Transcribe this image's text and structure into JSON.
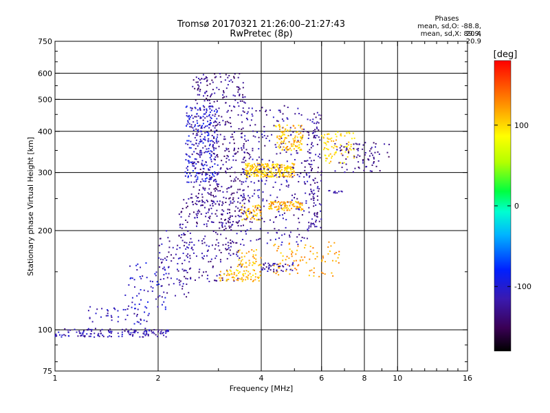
{
  "header": {
    "title_line1": "Tromsø 20170321 21:26:00–21:27:43",
    "title_line2": "RwPretec (8p)"
  },
  "stats": {
    "heading": "Phases",
    "line_o": "mean, sd,O: -88.8, 20.4",
    "line_x": "mean, sd,X:  89.9, 20.9"
  },
  "colorbar": {
    "unit_label": "[deg]",
    "ticks": [
      {
        "value": 100,
        "label": "100"
      },
      {
        "value": 0,
        "label": "0"
      },
      {
        "value": -100,
        "label": "-100"
      }
    ],
    "range": [
      -180,
      180
    ],
    "colormap": "rainbow (black-purple-blue-cyan-green-yellow-orange-red)"
  },
  "chart_data": {
    "type": "scatter",
    "title": "Tromsø 20170321 21:26:00–21:27:43",
    "subtitle": "RwPretec (8p)",
    "xlabel": "Frequency [MHz]",
    "ylabel": "Stationary phase Virtual Height [km]",
    "xscale": "log",
    "yscale": "log",
    "xlim": [
      1,
      16
    ],
    "ylim": [
      75,
      750
    ],
    "xticks": [
      1,
      2,
      4,
      6,
      8,
      10,
      16
    ],
    "xtick_labels": [
      "1",
      "2",
      "4",
      "6",
      "8",
      "10",
      "16"
    ],
    "xgrid": [
      2,
      4,
      6,
      8,
      10
    ],
    "yticks": [
      75,
      100,
      200,
      300,
      400,
      500,
      600,
      750
    ],
    "ytick_labels": [
      "75",
      "100",
      "200",
      "300",
      "400",
      "500",
      "600",
      "750"
    ],
    "ygrid": [
      100,
      200,
      300,
      400,
      500,
      600
    ],
    "grid": true,
    "color_value": "phase [deg]",
    "clusters": [
      {
        "x": [
          1.0,
          2.15
        ],
        "y": [
          95,
          101
        ],
        "phase": -115,
        "density": 140
      },
      {
        "x": [
          1.25,
          1.9
        ],
        "y": [
          104,
          118
        ],
        "phase": -110,
        "density": 45
      },
      {
        "x": [
          1.6,
          2.15
        ],
        "y": [
          115,
          160
        ],
        "phase": -105,
        "density": 60
      },
      {
        "x": [
          2.0,
          2.5
        ],
        "y": [
          125,
          200
        ],
        "phase": -120,
        "density": 70
      },
      {
        "x": [
          2.3,
          3.5
        ],
        "y": [
          140,
          260
        ],
        "phase": -125,
        "density": 220
      },
      {
        "x": [
          2.4,
          3.0
        ],
        "y": [
          280,
          480
        ],
        "phase": -100,
        "density": 240
      },
      {
        "x": [
          2.5,
          3.6
        ],
        "y": [
          200,
          600
        ],
        "phase": -130,
        "density": 420
      },
      {
        "x": [
          3.0,
          4.0
        ],
        "y": [
          140,
          152
        ],
        "phase": 110,
        "density": 70
      },
      {
        "x": [
          3.4,
          4.0
        ],
        "y": [
          155,
          175
        ],
        "phase": 115,
        "density": 40
      },
      {
        "x": [
          3.5,
          4.0
        ],
        "y": [
          215,
          240
        ],
        "phase": 110,
        "density": 60
      },
      {
        "x": [
          3.6,
          5.0
        ],
        "y": [
          290,
          320
        ],
        "phase": 105,
        "density": 240
      },
      {
        "x": [
          3.5,
          5.5
        ],
        "y": [
          180,
          480
        ],
        "phase": -120,
        "density": 300
      },
      {
        "x": [
          4.2,
          5.3
        ],
        "y": [
          230,
          245
        ],
        "phase": 115,
        "density": 90
      },
      {
        "x": [
          4.4,
          5.3
        ],
        "y": [
          350,
          420
        ],
        "phase": 110,
        "density": 110
      },
      {
        "x": [
          4.3,
          6.8
        ],
        "y": [
          145,
          185
        ],
        "phase": 120,
        "density": 90
      },
      {
        "x": [
          4.0,
          5.0
        ],
        "y": [
          150,
          160
        ],
        "phase": -120,
        "density": 40
      },
      {
        "x": [
          5.5,
          6.0
        ],
        "y": [
          200,
          460
        ],
        "phase": -125,
        "density": 120
      },
      {
        "x": [
          6.0,
          7.5
        ],
        "y": [
          320,
          400
        ],
        "phase": 100,
        "density": 80
      },
      {
        "x": [
          6.5,
          9.5
        ],
        "y": [
          300,
          370
        ],
        "phase": -130,
        "density": 80
      },
      {
        "x": [
          6.3,
          7.0
        ],
        "y": [
          260,
          265
        ],
        "phase": -125,
        "density": 10
      }
    ]
  }
}
